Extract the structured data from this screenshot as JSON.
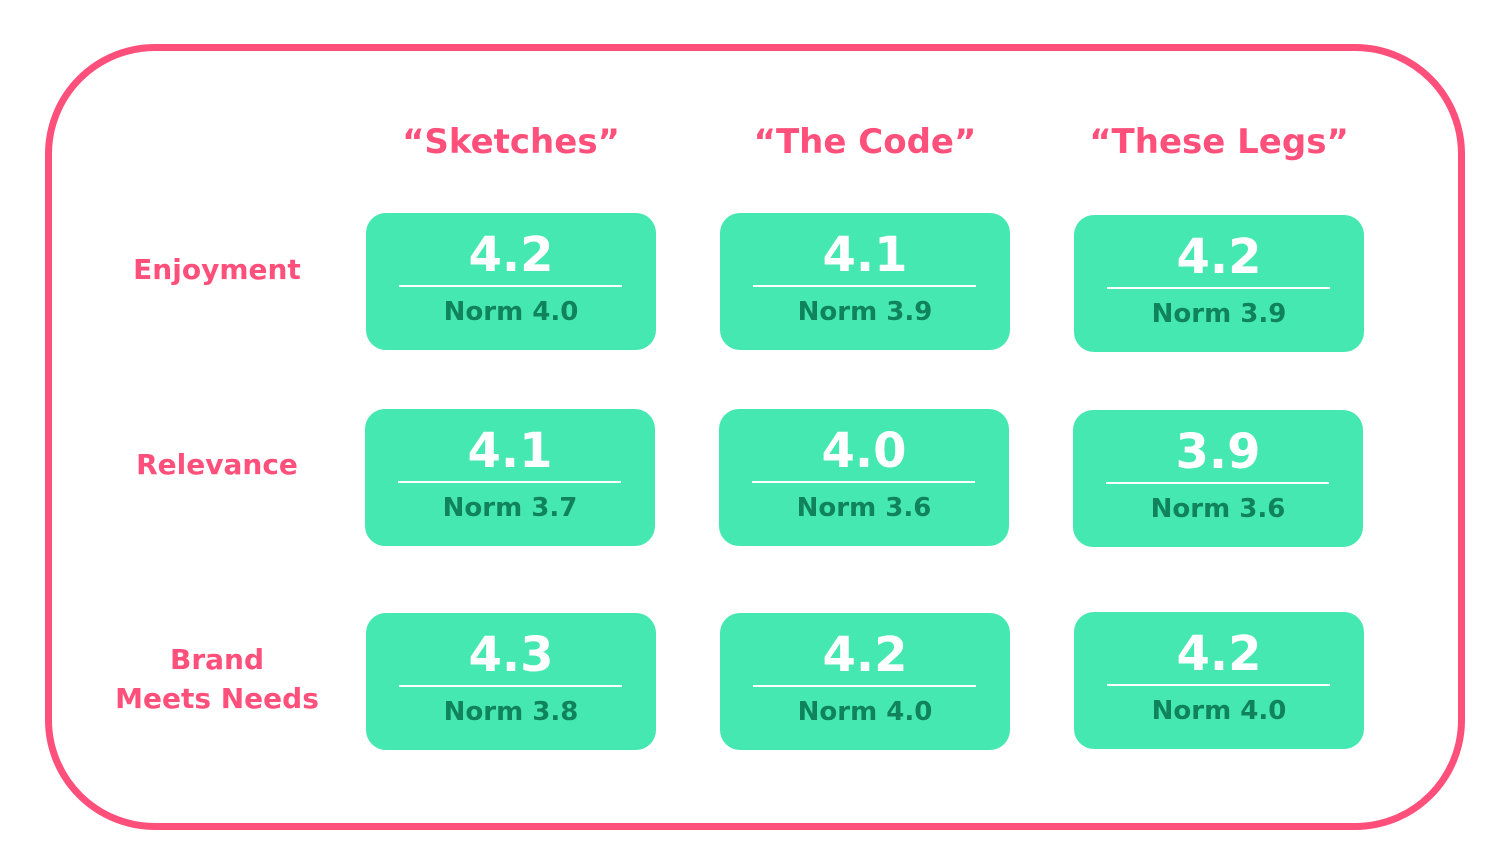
{
  "columns": [
    "“Sketches”",
    "“The Code”",
    "“These Legs”"
  ],
  "rows": [
    {
      "label_lines": [
        "Enjoyment"
      ],
      "cells": [
        {
          "score": "4.2",
          "norm": "Norm 4.0"
        },
        {
          "score": "4.1",
          "norm": "Norm 3.9"
        },
        {
          "score": "4.2",
          "norm": "Norm 3.9"
        }
      ]
    },
    {
      "label_lines": [
        "Relevance"
      ],
      "cells": [
        {
          "score": "4.1",
          "norm": "Norm 3.7"
        },
        {
          "score": "4.0",
          "norm": "Norm 3.6"
        },
        {
          "score": "3.9",
          "norm": "Norm 3.6"
        }
      ]
    },
    {
      "label_lines": [
        "Brand",
        "Meets Needs"
      ],
      "cells": [
        {
          "score": "4.3",
          "norm": "Norm 3.8"
        },
        {
          "score": "4.2",
          "norm": "Norm 4.0"
        },
        {
          "score": "4.2",
          "norm": "Norm 4.0"
        }
      ]
    }
  ],
  "colors": {
    "accent": "#FF4F7B",
    "card": "#45E8B0",
    "norm_text": "#10835C"
  }
}
